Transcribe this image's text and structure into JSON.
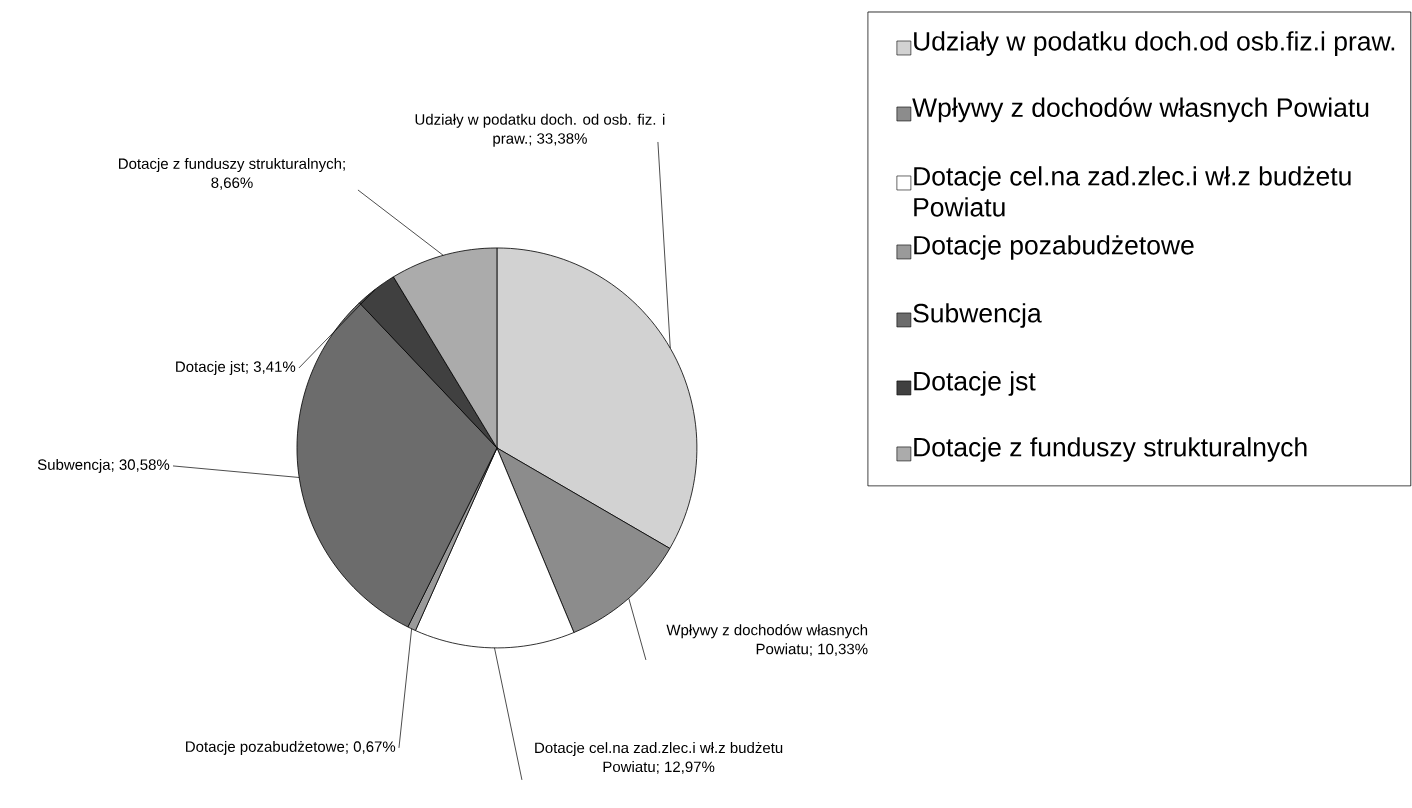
{
  "chart_data": {
    "type": "pie",
    "categories": [
      "Udziały w podatku doch.od osb.fiz.i praw.",
      "Wpływy z dochodów własnych Powiatu",
      "Dotacje cel.na zad.zlec.i wł.z budżetu Powiatu",
      "Dotacje pozabudżetowe",
      "Subwencja",
      "Dotacje jst",
      "Dotacje z funduszy strukturalnych"
    ],
    "values": [
      33.38,
      10.33,
      12.97,
      0.67,
      30.58,
      3.41,
      8.66
    ],
    "colors": [
      "#d2d2d2",
      "#8c8c8c",
      "#ffffff",
      "#9a9a9a",
      "#6c6c6c",
      "#404040",
      "#ababab"
    ],
    "value_labels": [
      "Udziały w podatku doch. od osb. fiz. i praw.; 33,38%",
      "Wpływy z dochodów własnych Powiatu; 10,33%",
      "Dotacje cel.na zad.zlec.i wł.z budżetu Powiatu; 12,97%",
      "Dotacje pozabudżetowe; 0,67%",
      "Subwencja; 30,58%",
      "Dotacje jst; 3,41%",
      "Dotacje z funduszy strukturalnych; 8,66%"
    ],
    "legend": "top right"
  }
}
